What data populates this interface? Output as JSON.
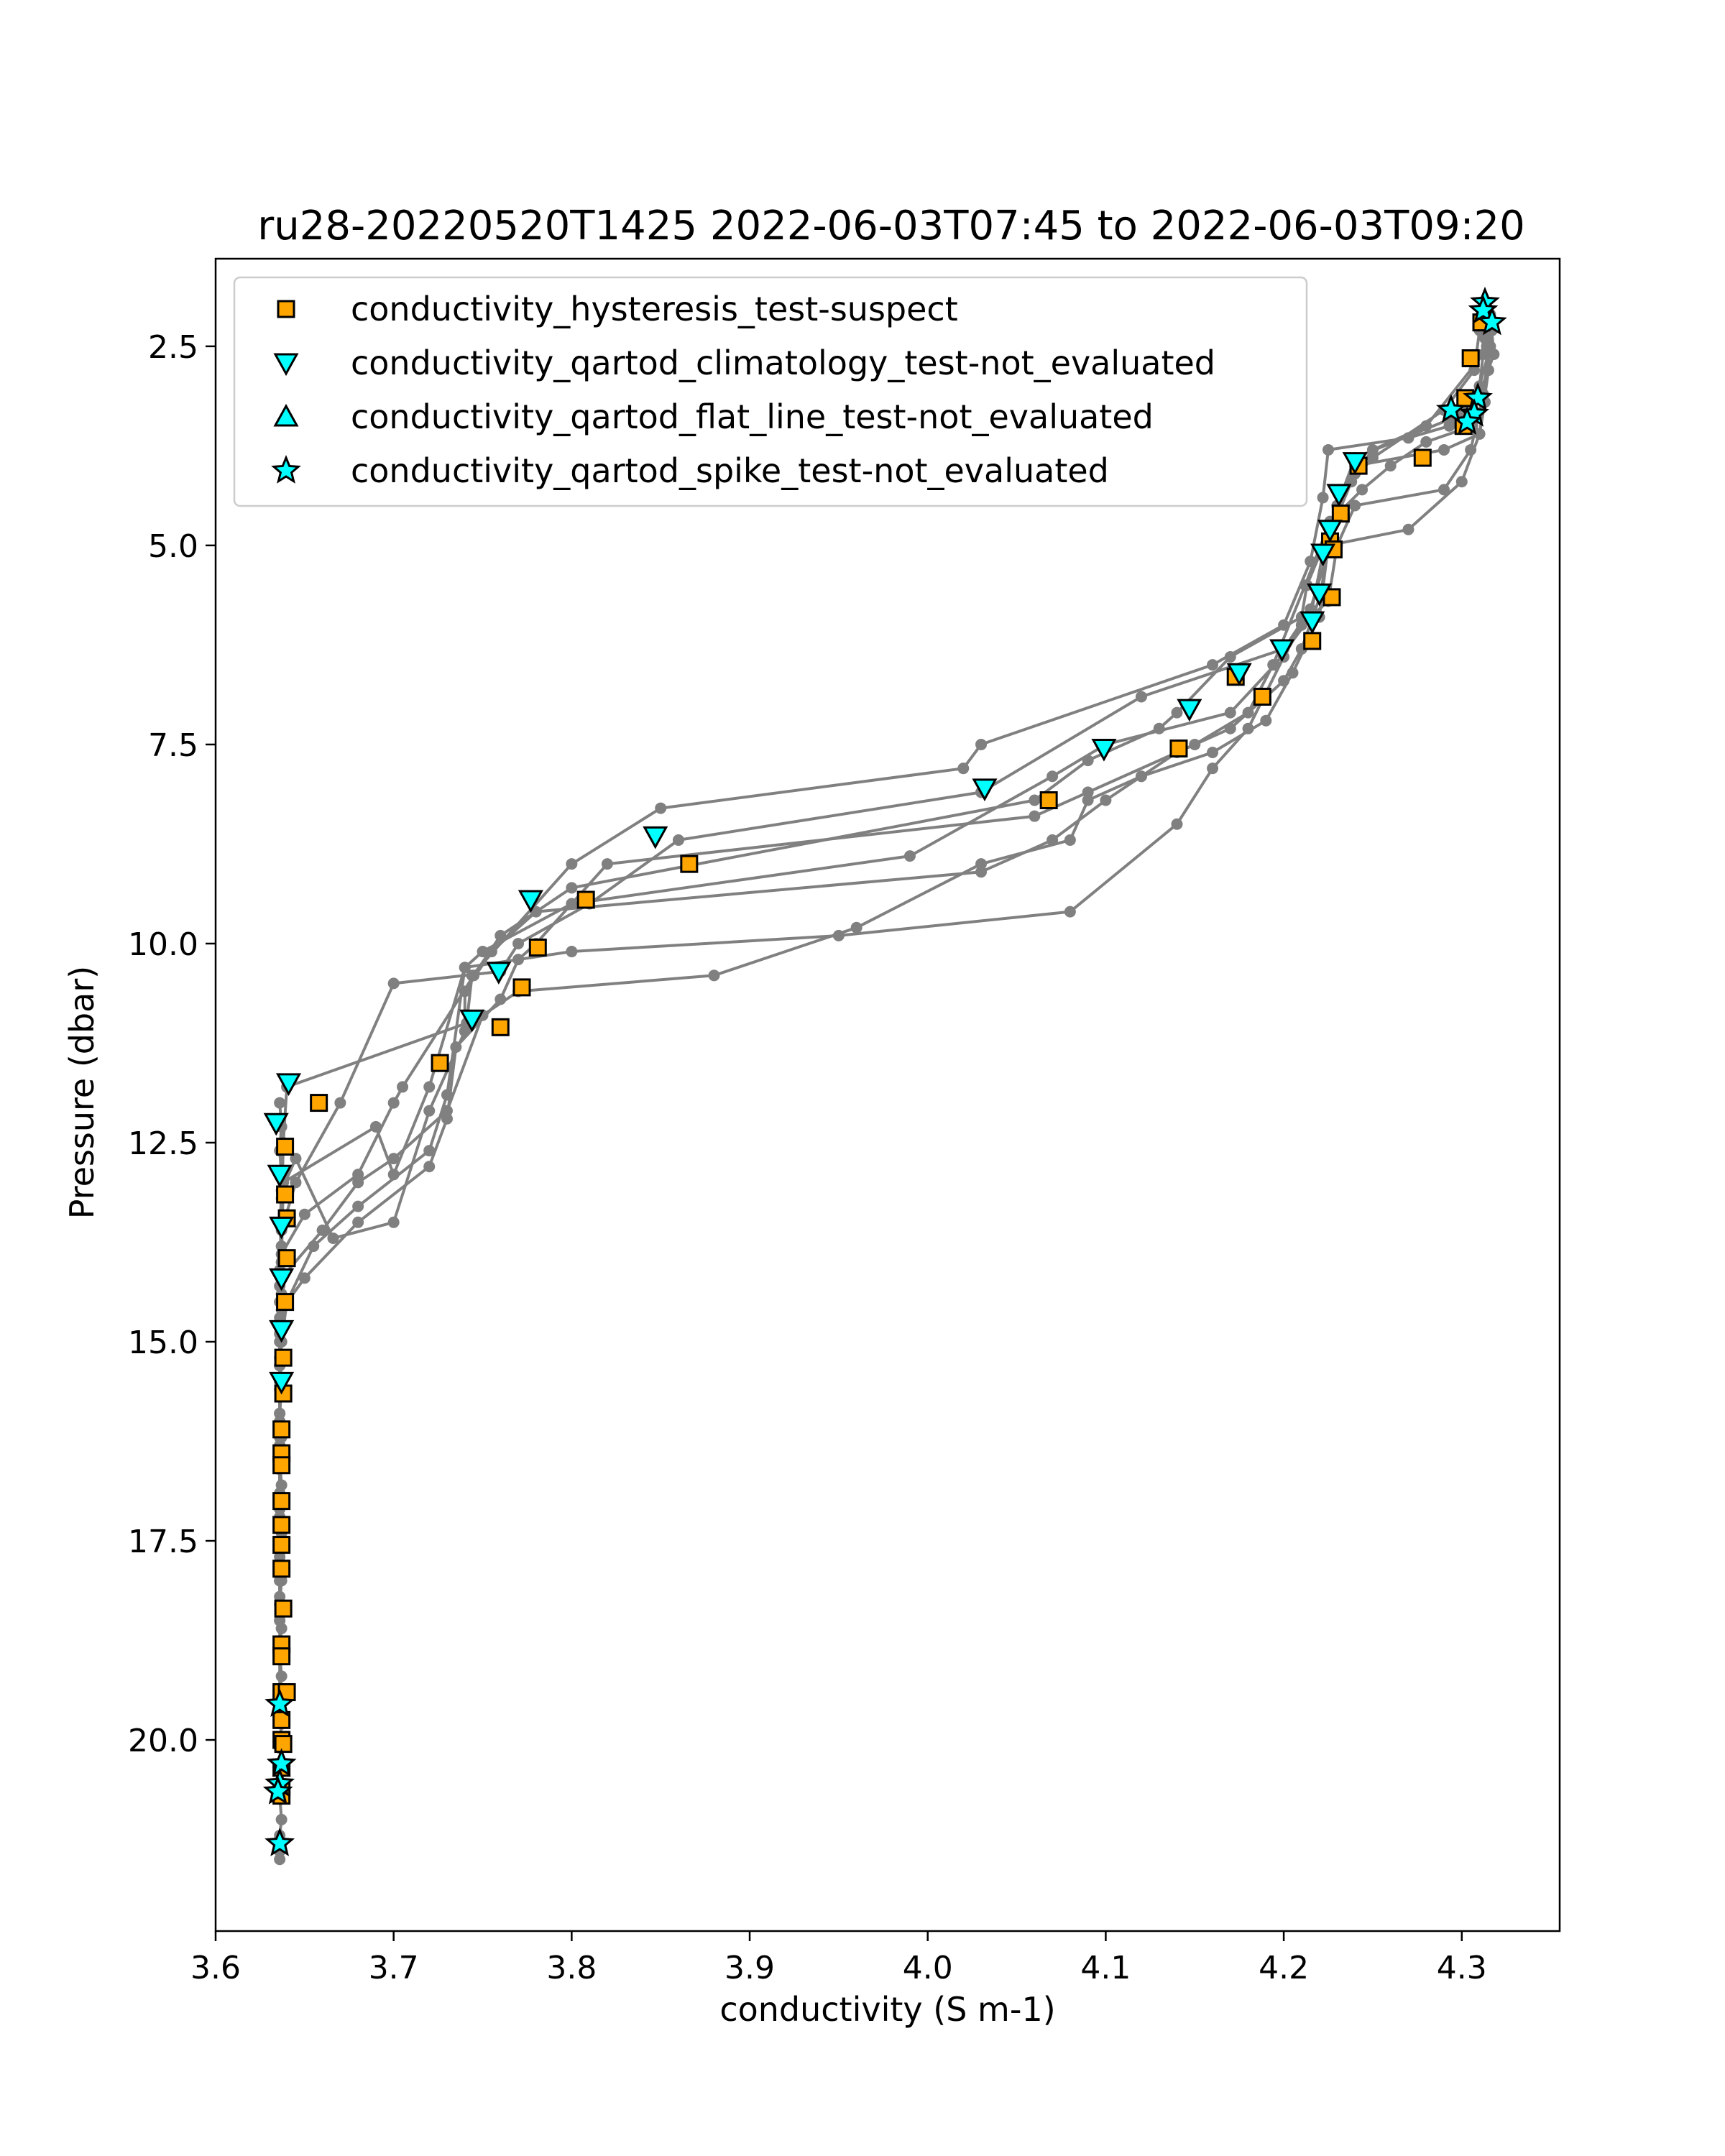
{
  "chart_data": {
    "type": "scatter",
    "title": "ru28-20220520T1425 2022-06-03T07:45 to 2022-06-03T09:20",
    "xlabel": "conductivity (S m-1)",
    "ylabel": "Pressure (dbar)",
    "xlim": [
      3.6,
      4.355
    ],
    "ylim": [
      22.4,
      1.4
    ],
    "y_inverted": true,
    "xticks": [
      3.6,
      3.7,
      3.8,
      3.9,
      4.0,
      4.1,
      4.2,
      4.3
    ],
    "xtick_labels": [
      "3.6",
      "3.7",
      "3.8",
      "3.9",
      "4.0",
      "4.1",
      "4.2",
      "4.3"
    ],
    "yticks": [
      2.5,
      5.0,
      7.5,
      10.0,
      12.5,
      15.0,
      17.5,
      20.0
    ],
    "ytick_labels": [
      "2.5",
      "5.0",
      "7.5",
      "10.0",
      "12.5",
      "15.0",
      "17.5",
      "20.0"
    ],
    "grid": false,
    "legend_position": "top-left",
    "colors": {
      "profile_line": "#808080",
      "suspect": "#FFA500",
      "not_evaluated": "#00FFFF",
      "marker_edge": "#000000"
    },
    "profiles": [
      {
        "x": [
          4.313,
          4.316,
          4.31,
          4.3,
          4.293,
          4.27,
          4.225,
          4.222,
          4.215,
          4.2,
          4.16,
          4.03,
          4.02,
          3.85,
          3.8,
          3.744,
          3.741,
          3.64,
          3.638,
          3.637,
          3.637,
          3.636,
          3.636,
          3.636,
          3.636,
          3.636
        ],
        "y": [
          2.0,
          2.5,
          3.0,
          3.4,
          3.5,
          3.65,
          3.8,
          4.4,
          5.2,
          6.0,
          6.5,
          7.5,
          7.8,
          8.3,
          9.0,
          10.4,
          11.0,
          11.8,
          12.5,
          13.5,
          14.5,
          15.5,
          16.5,
          17.5,
          18.5,
          19.6
        ]
      },
      {
        "x": [
          4.316,
          4.318,
          4.31,
          4.295,
          4.24,
          4.23,
          4.226,
          4.215,
          4.2,
          4.12,
          4.03,
          3.86,
          3.81,
          3.77,
          3.76,
          3.7,
          3.67,
          3.645,
          3.637,
          3.636,
          3.636,
          3.636,
          3.636,
          3.636
        ],
        "y": [
          2.1,
          2.6,
          3.1,
          3.4,
          3.9,
          4.5,
          5.0,
          5.8,
          6.3,
          6.9,
          8.1,
          8.7,
          9.5,
          10.0,
          10.35,
          10.5,
          12.0,
          13.0,
          13.6,
          14.5,
          15.5,
          16.5,
          17.5,
          18.5
        ]
      },
      {
        "x": [
          4.314,
          4.312,
          4.28,
          4.25,
          4.24,
          4.23,
          4.222,
          4.215,
          4.195,
          4.17,
          4.1,
          4.07,
          3.99,
          3.8,
          3.75,
          3.74,
          3.72,
          3.7,
          3.69,
          3.638,
          3.637,
          3.636,
          3.636,
          3.636,
          3.636
        ],
        "y": [
          2.2,
          2.6,
          3.5,
          3.8,
          4.1,
          4.5,
          5.1,
          5.9,
          6.5,
          7.1,
          7.5,
          7.9,
          8.9,
          9.5,
          10.1,
          10.3,
          11.8,
          12.9,
          12.3,
          13.0,
          14.0,
          15.0,
          16.0,
          17.0,
          18.0
        ]
      },
      {
        "x": [
          4.31,
          4.307,
          4.29,
          4.25,
          4.238,
          4.225,
          4.221,
          4.21,
          4.2,
          4.17,
          4.14,
          4.12,
          4.1,
          4.07,
          4.03,
          3.78,
          3.755,
          3.74,
          3.74,
          3.72,
          3.7,
          3.666,
          3.645,
          3.637,
          3.636,
          3.636,
          3.636
        ],
        "y": [
          2.3,
          2.8,
          3.3,
          3.9,
          4.2,
          4.9,
          5.6,
          6.3,
          6.7,
          7.3,
          7.6,
          7.9,
          8.2,
          8.7,
          9.1,
          9.6,
          10.1,
          10.6,
          11.1,
          12.1,
          13.5,
          13.7,
          12.7,
          13.1,
          14.3,
          15.3,
          16.3
        ]
      },
      {
        "x": [
          4.313,
          4.31,
          4.306,
          4.28,
          4.26,
          4.244,
          4.226,
          4.212,
          4.194,
          4.18,
          4.15,
          4.09,
          4.06,
          3.82,
          3.78,
          3.77,
          3.76,
          3.735,
          3.73,
          3.72,
          3.68,
          3.65,
          3.637,
          3.636,
          3.636
        ],
        "y": [
          2.4,
          3.0,
          3.5,
          3.7,
          4.0,
          4.3,
          4.7,
          5.5,
          6.5,
          7.1,
          7.5,
          8.1,
          8.4,
          9.0,
          10.0,
          10.2,
          10.7,
          11.3,
          12.2,
          12.8,
          13.5,
          14.2,
          14.6,
          15.6,
          16.6
        ]
      },
      {
        "x": [
          4.314,
          4.313,
          4.31,
          4.29,
          4.24,
          4.226,
          4.213,
          4.21,
          4.17,
          4.14,
          4.13,
          4.09,
          4.06,
          3.8,
          3.76,
          3.745,
          3.705,
          3.7,
          3.68,
          3.65,
          3.637,
          3.636,
          3.636,
          3.636
        ],
        "y": [
          2.5,
          3.2,
          3.6,
          3.8,
          4.0,
          4.8,
          5.5,
          5.9,
          6.4,
          7.1,
          7.3,
          7.7,
          8.2,
          9.3,
          9.9,
          10.4,
          11.8,
          12.0,
          12.9,
          13.4,
          13.9,
          14.9,
          15.9,
          16.9
        ]
      },
      {
        "x": [
          4.316,
          4.315,
          4.31,
          4.3,
          4.27,
          4.225,
          4.22,
          4.205,
          4.19,
          4.16,
          4.12,
          4.09,
          4.08,
          4.03,
          3.96,
          3.88,
          3.77,
          3.75,
          3.73,
          3.7,
          3.68,
          3.66,
          3.637,
          3.636,
          3.636,
          3.636,
          3.636
        ],
        "y": [
          2.2,
          2.8,
          3.6,
          4.2,
          4.8,
          5.0,
          5.9,
          6.6,
          7.2,
          7.6,
          7.9,
          8.2,
          8.7,
          9.0,
          9.8,
          10.4,
          10.6,
          10.9,
          12.1,
          12.7,
          13.0,
          13.6,
          14.2,
          15.2,
          16.2,
          17.2,
          18.2
        ]
      },
      {
        "x": [
          4.317,
          4.312,
          4.305,
          4.29,
          4.24,
          4.23,
          4.225,
          4.21,
          4.2,
          4.18,
          4.16,
          4.14,
          4.08,
          3.95,
          3.8,
          3.74,
          3.73,
          3.72,
          3.68,
          3.655,
          3.64,
          3.637,
          3.636,
          3.636,
          3.636
        ],
        "y": [
          2.3,
          3.1,
          3.8,
          4.3,
          4.5,
          5.0,
          5.7,
          6.0,
          6.4,
          7.3,
          7.8,
          8.5,
          9.6,
          9.9,
          10.1,
          10.3,
          11.9,
          12.6,
          13.3,
          13.8,
          14.5,
          15.0,
          16.0,
          17.0,
          18.0
        ]
      },
      {
        "x": [
          3.636,
          3.637,
          3.636,
          3.637,
          3.637,
          3.636,
          3.637,
          3.636,
          3.637,
          3.636,
          3.637,
          3.636,
          3.637,
          3.636,
          3.637,
          3.636,
          3.637,
          3.636,
          3.637,
          3.636,
          3.637,
          3.636,
          3.637,
          3.636,
          3.637,
          3.636,
          3.637,
          3.636,
          3.637,
          3.636,
          3.637,
          3.636,
          3.636,
          3.636
        ],
        "y": [
          12.0,
          12.3,
          12.6,
          12.9,
          13.2,
          13.5,
          13.8,
          14.1,
          14.4,
          14.7,
          15.0,
          15.3,
          15.6,
          15.9,
          16.2,
          16.5,
          16.8,
          17.1,
          17.4,
          17.7,
          18.0,
          18.3,
          18.6,
          18.9,
          19.2,
          19.5,
          19.8,
          20.1,
          20.4,
          20.7,
          21.0,
          21.2,
          21.4,
          21.5
        ]
      }
    ],
    "series": [
      {
        "name": "conductivity_hysteresis_test-suspect",
        "marker": "square",
        "color": "#FFA500",
        "x": [
          4.311,
          4.305,
          4.302,
          4.301,
          4.278,
          4.242,
          4.232,
          4.226,
          4.228,
          4.227,
          4.216,
          4.188,
          4.173,
          4.141,
          4.068,
          3.866,
          3.808,
          3.781,
          3.772,
          3.76,
          3.726,
          3.658,
          3.639,
          3.639,
          3.64,
          3.64,
          3.639,
          3.638,
          3.638,
          3.637,
          3.637,
          3.637,
          3.637,
          3.637,
          3.637,
          3.637,
          3.638,
          3.637,
          3.637,
          3.637,
          3.637,
          3.637,
          3.638,
          3.64,
          3.637,
          3.637,
          3.637
        ],
        "y": [
          2.2,
          2.65,
          3.15,
          3.5,
          3.9,
          4.0,
          4.6,
          4.95,
          5.05,
          5.65,
          6.2,
          6.9,
          6.65,
          7.55,
          8.2,
          9.0,
          9.45,
          10.05,
          10.55,
          11.05,
          11.5,
          12.0,
          12.55,
          13.15,
          13.45,
          13.95,
          14.5,
          15.2,
          15.65,
          16.1,
          16.4,
          16.55,
          17.0,
          17.3,
          17.55,
          17.85,
          18.35,
          18.8,
          18.95,
          19.4,
          19.75,
          20.0,
          20.05,
          19.4,
          20.35,
          20.6,
          20.7
        ]
      },
      {
        "name": "conductivity_qartod_climatology_test-not_evaluated",
        "marker": "triangle-down",
        "color": "#00FFFF",
        "x": [
          4.24,
          4.231,
          4.226,
          4.222,
          4.22,
          4.216,
          4.199,
          4.175,
          4.147,
          4.099,
          4.032,
          3.847,
          3.777,
          3.759,
          3.744,
          3.641,
          3.634,
          3.636,
          3.637,
          3.637,
          3.637,
          3.637
        ],
        "y": [
          3.95,
          4.35,
          4.8,
          5.1,
          5.6,
          5.95,
          6.3,
          6.6,
          7.05,
          7.55,
          8.05,
          8.65,
          9.45,
          10.35,
          10.95,
          11.75,
          12.25,
          12.9,
          13.55,
          14.2,
          14.85,
          15.5
        ]
      },
      {
        "name": "conductivity_qartod_flat_line_test-not_evaluated",
        "marker": "triangle-up",
        "color": "#00FFFF",
        "x": [],
        "y": []
      },
      {
        "name": "conductivity_qartod_spike_test-not_evaluated",
        "marker": "star",
        "color": "#00FFFF",
        "x": [
          4.313,
          4.312,
          4.317,
          4.309,
          4.307,
          4.303,
          4.294,
          3.636,
          3.637,
          3.636,
          3.635,
          3.636
        ],
        "y": [
          1.95,
          2.05,
          2.2,
          3.15,
          3.35,
          3.45,
          3.3,
          19.55,
          20.3,
          20.55,
          20.65,
          21.3
        ]
      }
    ]
  }
}
